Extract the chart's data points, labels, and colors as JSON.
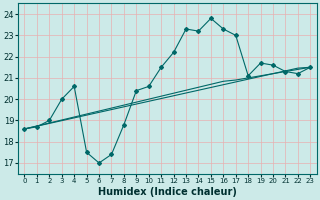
{
  "xlabel": "Humidex (Indice chaleur)",
  "background_color": "#cceae8",
  "grid_color": "#e8b0b0",
  "line_color": "#006868",
  "xlim": [
    -0.5,
    23.5
  ],
  "ylim": [
    16.5,
    24.5
  ],
  "yticks": [
    17,
    18,
    19,
    20,
    21,
    22,
    23,
    24
  ],
  "xticks": [
    0,
    1,
    2,
    3,
    4,
    5,
    6,
    7,
    8,
    9,
    10,
    11,
    12,
    13,
    14,
    15,
    16,
    17,
    18,
    19,
    20,
    21,
    22,
    23
  ],
  "line1_x": [
    0,
    1,
    2,
    3,
    4,
    5,
    6,
    7,
    8,
    9,
    10,
    11,
    12,
    13,
    14,
    15,
    16,
    17,
    18,
    19,
    20,
    21,
    22,
    23
  ],
  "line1_y": [
    18.6,
    18.7,
    19.0,
    20.0,
    20.6,
    17.5,
    17.0,
    17.4,
    18.8,
    20.4,
    20.6,
    21.5,
    22.2,
    23.3,
    23.2,
    23.8,
    23.3,
    23.0,
    21.1,
    21.7,
    21.6,
    21.3,
    21.2,
    21.5
  ],
  "line2_x": [
    0,
    1,
    2,
    3,
    4,
    5,
    6,
    7,
    8,
    9,
    10,
    11,
    12,
    13,
    14,
    15,
    16,
    17,
    18,
    19,
    20,
    21,
    22,
    23
  ],
  "line2_y": [
    18.6,
    18.73,
    18.86,
    18.99,
    19.12,
    19.25,
    19.38,
    19.51,
    19.64,
    19.77,
    19.9,
    20.03,
    20.16,
    20.29,
    20.42,
    20.55,
    20.68,
    20.81,
    20.94,
    21.07,
    21.2,
    21.33,
    21.46,
    21.5
  ],
  "line3_x": [
    0,
    1,
    2,
    3,
    4,
    5,
    6,
    7,
    8,
    9,
    10,
    11,
    12,
    13,
    14,
    15,
    16,
    17,
    18,
    19,
    20,
    21,
    22,
    23
  ],
  "line3_y": [
    18.6,
    18.74,
    18.88,
    19.02,
    19.16,
    19.3,
    19.44,
    19.58,
    19.72,
    19.86,
    20.0,
    20.14,
    20.28,
    20.42,
    20.56,
    20.7,
    20.84,
    20.9,
    21.0,
    21.1,
    21.2,
    21.3,
    21.4,
    21.5
  ]
}
